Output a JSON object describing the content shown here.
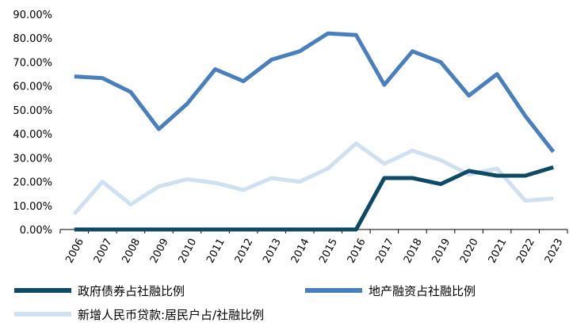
{
  "chart_data": {
    "type": "line",
    "title": "",
    "xlabel": "",
    "ylabel": "",
    "categories": [
      "2006",
      "2007",
      "2008",
      "2009",
      "2010",
      "2011",
      "2012",
      "2013",
      "2014",
      "2015",
      "2016",
      "2017",
      "2018",
      "2019",
      "2020",
      "2021",
      "2022",
      "2023"
    ],
    "ylim": [
      0,
      90
    ],
    "yticks": [
      "0.00%",
      "10.00%",
      "20.00%",
      "30.00%",
      "40.00%",
      "50.00%",
      "60.00%",
      "70.00%",
      "80.00%",
      "90.00%"
    ],
    "grid": false,
    "legend_position": "bottom",
    "series": [
      {
        "name": "政府债券占社融比例",
        "color": "#0d4a66",
        "values": [
          0,
          0,
          0,
          0,
          0,
          0,
          0,
          0,
          0,
          0,
          0,
          21.5,
          21.5,
          19,
          24.5,
          22.5,
          22.5,
          26
        ]
      },
      {
        "name": "地产融资占社融比例",
        "color": "#4a7fbe",
        "values": [
          64,
          63.3,
          57.5,
          42,
          52.5,
          67,
          62,
          71,
          74.5,
          82,
          81.3,
          60.5,
          74.5,
          70,
          56,
          65,
          47.5,
          32.5
        ]
      },
      {
        "name": "新增人民币贷款:居民户占/社融比例",
        "color": "#cfe0f0",
        "values": [
          6.5,
          20,
          10.5,
          18,
          21,
          19.5,
          16.5,
          21.5,
          20,
          25.5,
          36,
          27.5,
          33,
          29,
          23,
          25.5,
          12,
          13
        ]
      }
    ]
  }
}
